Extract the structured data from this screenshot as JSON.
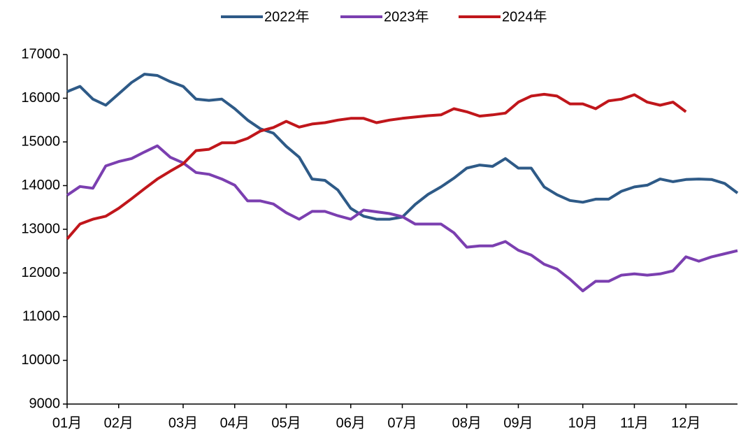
{
  "chart_data": {
    "type": "line",
    "categories": [
      "01月",
      null,
      null,
      null,
      "02月",
      null,
      null,
      null,
      null,
      "03月",
      null,
      null,
      null,
      "04月",
      null,
      null,
      null,
      "05月",
      null,
      null,
      null,
      null,
      "06月",
      null,
      null,
      null,
      "07月",
      null,
      null,
      null,
      null,
      "08月",
      null,
      null,
      null,
      "09月",
      null,
      null,
      null,
      null,
      "10月",
      null,
      null,
      null,
      "11月",
      null,
      null,
      null,
      "12月",
      null,
      null,
      null,
      null
    ],
    "series": [
      {
        "name": "2022年",
        "color": "#2e5a87",
        "values": [
          16150,
          16270,
          15980,
          15840,
          16100,
          16360,
          16550,
          16520,
          16380,
          16270,
          15980,
          15950,
          15980,
          15760,
          15500,
          15300,
          15200,
          14900,
          14650,
          14150,
          14120,
          13900,
          13480,
          13300,
          13230,
          13230,
          13280,
          13570,
          13800,
          13970,
          14170,
          14400,
          14470,
          14440,
          14620,
          14400,
          14400,
          13970,
          13790,
          13660,
          13620,
          13690,
          13690,
          13870,
          13970,
          14010,
          14150,
          14090,
          14140,
          14150,
          14140,
          14050,
          13830
        ]
      },
      {
        "name": "2023年",
        "color": "#7b3fb0",
        "values": [
          13780,
          13980,
          13940,
          14450,
          14550,
          14620,
          14770,
          14910,
          14650,
          14520,
          14300,
          14260,
          14150,
          14010,
          13650,
          13650,
          13580,
          13380,
          13230,
          13410,
          13410,
          13310,
          13230,
          13440,
          13400,
          13360,
          13290,
          13120,
          13120,
          13120,
          12920,
          12590,
          12620,
          12620,
          12720,
          12520,
          12410,
          12200,
          12090,
          11860,
          11590,
          11810,
          11810,
          11950,
          11980,
          11950,
          11980,
          12050,
          12370,
          12270,
          12370,
          12440,
          12510
        ]
      },
      {
        "name": "2024年",
        "color": "#c0161b",
        "values": [
          12780,
          13120,
          13230,
          13300,
          13480,
          13700,
          13930,
          14150,
          14330,
          14500,
          14800,
          14830,
          14980,
          14980,
          15080,
          15250,
          15330,
          15470,
          15340,
          15410,
          15440,
          15500,
          15540,
          15540,
          15440,
          15500,
          15540,
          15570,
          15600,
          15620,
          15760,
          15690,
          15590,
          15620,
          15660,
          15910,
          16050,
          16090,
          16050,
          15870,
          15870,
          15760,
          15940,
          15980,
          16080,
          15910,
          15840,
          15910,
          15690,
          null,
          null,
          null,
          null
        ]
      }
    ],
    "ylim": [
      9000,
      17000
    ],
    "yticks": [
      9000,
      10000,
      11000,
      12000,
      13000,
      14000,
      15000,
      16000,
      17000
    ]
  }
}
